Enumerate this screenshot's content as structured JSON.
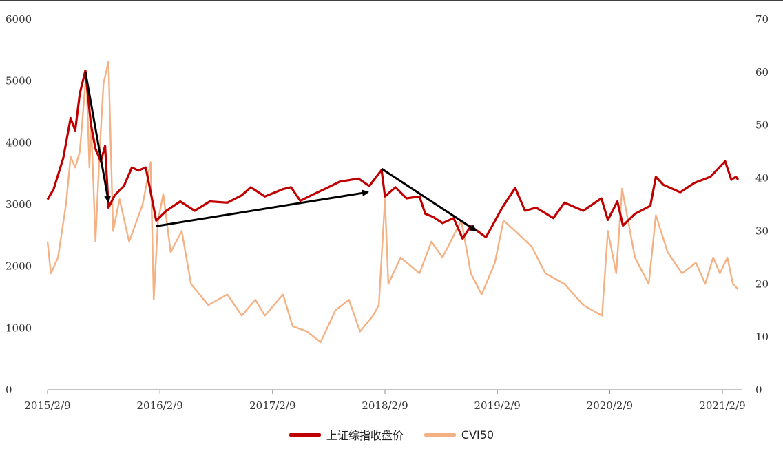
{
  "chart_data": {
    "type": "line",
    "title": "",
    "x_ticks": [
      "2015/2/9",
      "2016/2/9",
      "2017/2/9",
      "2018/2/9",
      "2019/2/9",
      "2020/2/9",
      "2021/2/9"
    ],
    "x_range": [
      "2015/2/9",
      "2021/4/1"
    ],
    "y_left": {
      "range": [
        0,
        6000
      ],
      "ticks": [
        "0",
        "1000",
        "2000",
        "3000",
        "4000",
        "5000",
        "6000"
      ]
    },
    "y_right": {
      "range": [
        0,
        70
      ],
      "ticks": [
        "0",
        "10",
        "20",
        "30",
        "40",
        "50",
        "60",
        "70"
      ]
    },
    "grid": false,
    "legend_position": "bottom-center",
    "series": [
      {
        "name": "上证综指收盘价",
        "axis": "left",
        "color": "#c00000",
        "points": [
          [
            "2015/2/9",
            3080
          ],
          [
            "2015/3/1",
            3250
          ],
          [
            "2015/4/1",
            3750
          ],
          [
            "2015/4/25",
            4400
          ],
          [
            "2015/5/10",
            4200
          ],
          [
            "2015/5/25",
            4800
          ],
          [
            "2015/6/12",
            5170
          ],
          [
            "2015/6/30",
            4300
          ],
          [
            "2015/7/15",
            3900
          ],
          [
            "2015/8/1",
            3700
          ],
          [
            "2015/8/15",
            3950
          ],
          [
            "2015/8/26",
            2950
          ],
          [
            "2015/9/15",
            3150
          ],
          [
            "2015/10/15",
            3300
          ],
          [
            "2015/11/10",
            3600
          ],
          [
            "2015/12/1",
            3550
          ],
          [
            "2015/12/25",
            3600
          ],
          [
            "2016/1/10",
            3200
          ],
          [
            "2016/1/28",
            2740
          ],
          [
            "2016/3/1",
            2900
          ],
          [
            "2016/4/15",
            3050
          ],
          [
            "2016/6/1",
            2900
          ],
          [
            "2016/7/20",
            3050
          ],
          [
            "2016/9/15",
            3030
          ],
          [
            "2016/11/1",
            3150
          ],
          [
            "2016/11/30",
            3280
          ],
          [
            "2017/1/15",
            3130
          ],
          [
            "2017/3/15",
            3250
          ],
          [
            "2017/4/10",
            3280
          ],
          [
            "2017/5/10",
            3060
          ],
          [
            "2017/6/15",
            3150
          ],
          [
            "2017/8/1",
            3260
          ],
          [
            "2017/9/15",
            3370
          ],
          [
            "2017/11/15",
            3420
          ],
          [
            "2017/12/20",
            3300
          ],
          [
            "2018/1/29",
            3560
          ],
          [
            "2018/2/9",
            3130
          ],
          [
            "2018/3/15",
            3280
          ],
          [
            "2018/4/20",
            3100
          ],
          [
            "2018/6/1",
            3130
          ],
          [
            "2018/6/20",
            2850
          ],
          [
            "2018/7/15",
            2800
          ],
          [
            "2018/8/15",
            2700
          ],
          [
            "2018/9/20",
            2780
          ],
          [
            "2018/10/19",
            2450
          ],
          [
            "2018/11/15",
            2650
          ],
          [
            "2019/1/3",
            2470
          ],
          [
            "2019/2/25",
            2950
          ],
          [
            "2019/4/8",
            3270
          ],
          [
            "2019/5/10",
            2900
          ],
          [
            "2019/6/15",
            2950
          ],
          [
            "2019/8/10",
            2780
          ],
          [
            "2019/9/15",
            3030
          ],
          [
            "2019/11/15",
            2900
          ],
          [
            "2020/1/13",
            3100
          ],
          [
            "2020/2/3",
            2750
          ],
          [
            "2020/3/5",
            3050
          ],
          [
            "2020/3/23",
            2660
          ],
          [
            "2020/5/1",
            2850
          ],
          [
            "2020/6/20",
            2980
          ],
          [
            "2020/7/8",
            3450
          ],
          [
            "2020/8/1",
            3320
          ],
          [
            "2020/9/25",
            3200
          ],
          [
            "2020/11/10",
            3350
          ],
          [
            "2021/1/1",
            3450
          ],
          [
            "2021/2/18",
            3700
          ],
          [
            "2021/3/10",
            3400
          ],
          [
            "2021/3/25",
            3450
          ],
          [
            "2021/4/1",
            3400
          ]
        ]
      },
      {
        "name": "CVI50",
        "axis": "right",
        "color": "#f4b183",
        "points": [
          [
            "2015/2/9",
            28
          ],
          [
            "2015/2/20",
            22
          ],
          [
            "2015/3/15",
            25
          ],
          [
            "2015/4/10",
            35
          ],
          [
            "2015/4/25",
            44
          ],
          [
            "2015/5/10",
            42
          ],
          [
            "2015/5/25",
            45
          ],
          [
            "2015/6/15",
            60
          ],
          [
            "2015/6/25",
            42
          ],
          [
            "2015/7/1",
            50
          ],
          [
            "2015/7/15",
            28
          ],
          [
            "2015/7/28",
            45
          ],
          [
            "2015/8/10",
            58
          ],
          [
            "2015/8/26",
            62
          ],
          [
            "2015/9/10",
            30
          ],
          [
            "2015/10/1",
            36
          ],
          [
            "2015/11/1",
            28
          ],
          [
            "2015/12/15",
            35
          ],
          [
            "2016/1/10",
            43
          ],
          [
            "2016/1/20",
            17
          ],
          [
            "2016/2/3",
            32
          ],
          [
            "2016/2/20",
            37
          ],
          [
            "2016/3/15",
            26
          ],
          [
            "2016/4/20",
            30
          ],
          [
            "2016/5/20",
            20
          ],
          [
            "2016/7/15",
            16
          ],
          [
            "2016/9/15",
            18
          ],
          [
            "2016/11/1",
            14
          ],
          [
            "2016/12/15",
            17
          ],
          [
            "2017/1/15",
            14
          ],
          [
            "2017/3/15",
            18
          ],
          [
            "2017/4/15",
            12
          ],
          [
            "2017/6/1",
            11
          ],
          [
            "2017/7/15",
            9
          ],
          [
            "2017/9/1",
            15
          ],
          [
            "2017/10/15",
            17
          ],
          [
            "2017/11/20",
            11
          ],
          [
            "2018/1/1",
            14
          ],
          [
            "2018/1/20",
            16
          ],
          [
            "2018/2/9",
            36
          ],
          [
            "2018/2/20",
            20
          ],
          [
            "2018/4/1",
            25
          ],
          [
            "2018/6/1",
            22
          ],
          [
            "2018/7/10",
            28
          ],
          [
            "2018/8/15",
            25
          ],
          [
            "2018/10/15",
            32
          ],
          [
            "2018/11/15",
            22
          ],
          [
            "2018/12/20",
            18
          ],
          [
            "2019/2/1",
            24
          ],
          [
            "2019/3/1",
            32
          ],
          [
            "2019/4/8",
            30
          ],
          [
            "2019/6/1",
            27
          ],
          [
            "2019/7/15",
            22
          ],
          [
            "2019/9/15",
            20
          ],
          [
            "2019/11/15",
            16
          ],
          [
            "2020/1/15",
            14
          ],
          [
            "2020/2/3",
            30
          ],
          [
            "2020/3/1",
            22
          ],
          [
            "2020/3/20",
            38
          ],
          [
            "2020/5/1",
            25
          ],
          [
            "2020/6/15",
            20
          ],
          [
            "2020/7/8",
            33
          ],
          [
            "2020/8/15",
            26
          ],
          [
            "2020/10/1",
            22
          ],
          [
            "2020/11/15",
            24
          ],
          [
            "2020/12/15",
            20
          ],
          [
            "2021/1/10",
            25
          ],
          [
            "2021/2/1",
            22
          ],
          [
            "2021/2/25",
            25
          ],
          [
            "2021/3/15",
            20
          ],
          [
            "2021/4/1",
            19
          ]
        ]
      }
    ],
    "annotations": [
      {
        "type": "arrow",
        "from": {
          "x": "2015/6/12",
          "axis": "left",
          "y": 5150
        },
        "to": {
          "x": "2015/8/26",
          "axis": "left",
          "y": 3050
        }
      },
      {
        "type": "arrow",
        "from": {
          "x": "2016/1/28",
          "axis": "left",
          "y": 2650
        },
        "to": {
          "x": "2017/12/15",
          "axis": "left",
          "y": 3200
        }
      },
      {
        "type": "arrow",
        "from": {
          "x": "2018/1/29",
          "axis": "left",
          "y": 3580
        },
        "to": {
          "x": "2018/12/1",
          "axis": "left",
          "y": 2580
        }
      }
    ]
  }
}
